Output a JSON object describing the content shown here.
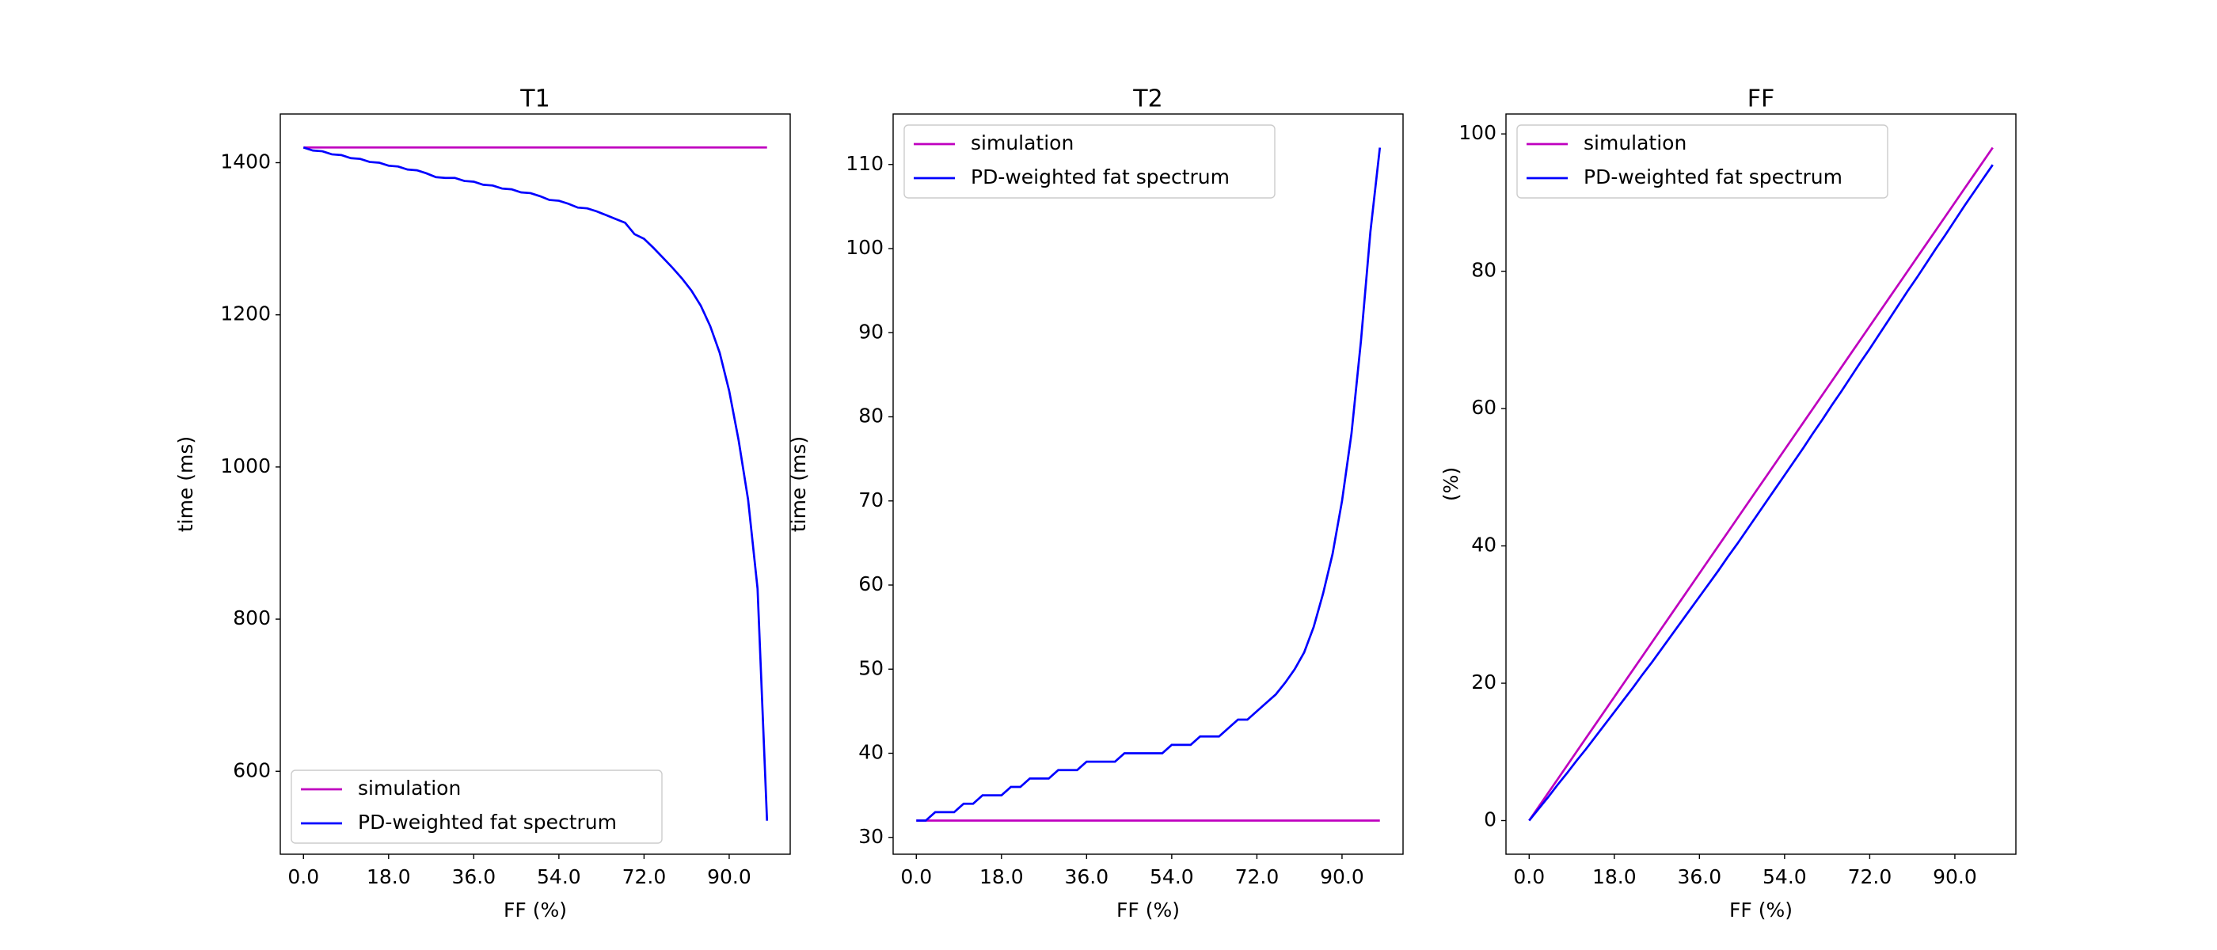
{
  "chart_data": [
    {
      "type": "line",
      "title": "T1",
      "x_label": "FF (%)",
      "y_label": "time (ms)",
      "legend": "lower left",
      "xlim": [
        -4.9,
        102.9
      ],
      "ylim": [
        491,
        1464
      ],
      "xticks": [
        {
          "value": 0,
          "label": "0.0"
        },
        {
          "value": 18,
          "label": "18.0"
        },
        {
          "value": 36,
          "label": "36.0"
        },
        {
          "value": 54,
          "label": "54.0"
        },
        {
          "value": 72,
          "label": "72.0"
        },
        {
          "value": 90,
          "label": "90.0"
        }
      ],
      "yticks": [
        600,
        800,
        1000,
        1200,
        1400
      ],
      "x": [
        0,
        2,
        4,
        6,
        8,
        10,
        12,
        14,
        16,
        18,
        20,
        22,
        24,
        26,
        28,
        30,
        32,
        34,
        36,
        38,
        40,
        42,
        44,
        46,
        48,
        50,
        52,
        54,
        56,
        58,
        60,
        62,
        64,
        66,
        68,
        70,
        72,
        74,
        76,
        78,
        80,
        82,
        84,
        86,
        88,
        90,
        92,
        94,
        96,
        98
      ],
      "series": [
        {
          "name": "simulation",
          "color": "#bf00bf",
          "values": [
            1420,
            1420,
            1420,
            1420,
            1420,
            1420,
            1420,
            1420,
            1420,
            1420,
            1420,
            1420,
            1420,
            1420,
            1420,
            1420,
            1420,
            1420,
            1420,
            1420,
            1420,
            1420,
            1420,
            1420,
            1420,
            1420,
            1420,
            1420,
            1420,
            1420,
            1420,
            1420,
            1420,
            1420,
            1420,
            1420,
            1420,
            1420,
            1420,
            1420,
            1420,
            1420,
            1420,
            1420,
            1420,
            1420,
            1420,
            1420,
            1420,
            1420
          ]
        },
        {
          "name": "PD-weighted fat spectrum",
          "color": "#0000ff",
          "values": [
            1420,
            1416,
            1415,
            1411,
            1410,
            1406,
            1405,
            1401,
            1400,
            1396,
            1395,
            1391,
            1390,
            1386,
            1381,
            1380,
            1380,
            1376,
            1375,
            1371,
            1370,
            1366,
            1365,
            1361,
            1360,
            1356,
            1351,
            1350,
            1346,
            1341,
            1340,
            1336,
            1331,
            1326,
            1321,
            1306,
            1300,
            1288,
            1275,
            1262,
            1248,
            1232,
            1212,
            1185,
            1150,
            1100,
            1035,
            957,
            840,
            535
          ]
        }
      ]
    },
    {
      "type": "line",
      "title": "T2",
      "x_label": "FF (%)",
      "y_label": "time (ms)",
      "legend": "upper left",
      "xlim": [
        -4.9,
        102.9
      ],
      "ylim": [
        28,
        116
      ],
      "xticks": [
        {
          "value": 0,
          "label": "0.0"
        },
        {
          "value": 18,
          "label": "18.0"
        },
        {
          "value": 36,
          "label": "36.0"
        },
        {
          "value": 54,
          "label": "54.0"
        },
        {
          "value": 72,
          "label": "72.0"
        },
        {
          "value": 90,
          "label": "90.0"
        }
      ],
      "yticks": [
        30,
        40,
        50,
        60,
        70,
        80,
        90,
        100,
        110
      ],
      "x": [
        0,
        2,
        4,
        6,
        8,
        10,
        12,
        14,
        16,
        18,
        20,
        22,
        24,
        26,
        28,
        30,
        32,
        34,
        36,
        38,
        40,
        42,
        44,
        46,
        48,
        50,
        52,
        54,
        56,
        58,
        60,
        62,
        64,
        66,
        68,
        70,
        72,
        74,
        76,
        78,
        80,
        82,
        84,
        86,
        88,
        90,
        92,
        94,
        96,
        98
      ],
      "series": [
        {
          "name": "simulation",
          "color": "#bf00bf",
          "values": [
            32,
            32,
            32,
            32,
            32,
            32,
            32,
            32,
            32,
            32,
            32,
            32,
            32,
            32,
            32,
            32,
            32,
            32,
            32,
            32,
            32,
            32,
            32,
            32,
            32,
            32,
            32,
            32,
            32,
            32,
            32,
            32,
            32,
            32,
            32,
            32,
            32,
            32,
            32,
            32,
            32,
            32,
            32,
            32,
            32,
            32,
            32,
            32,
            32,
            32
          ]
        },
        {
          "name": "PD-weighted fat spectrum",
          "color": "#0000ff",
          "values": [
            32,
            32,
            33,
            33,
            33,
            34,
            34,
            35,
            35,
            35,
            36,
            36,
            37,
            37,
            37,
            38,
            38,
            38,
            39,
            39,
            39,
            39,
            40,
            40,
            40,
            40,
            40,
            41,
            41,
            41,
            42,
            42,
            42,
            43,
            44,
            44,
            45,
            46,
            47,
            48.4,
            50,
            52,
            55,
            59,
            63.7,
            70,
            78,
            89,
            102,
            112
          ]
        }
      ]
    },
    {
      "type": "line",
      "title": "FF",
      "x_label": "FF (%)",
      "y_label": "(%)",
      "legend": "upper left",
      "xlim": [
        -4.9,
        102.9
      ],
      "ylim": [
        -4.9,
        102.9
      ],
      "xticks": [
        {
          "value": 0,
          "label": "0.0"
        },
        {
          "value": 18,
          "label": "18.0"
        },
        {
          "value": 36,
          "label": "36.0"
        },
        {
          "value": 54,
          "label": "54.0"
        },
        {
          "value": 72,
          "label": "72.0"
        },
        {
          "value": 90,
          "label": "90.0"
        }
      ],
      "yticks": [
        0,
        20,
        40,
        60,
        80,
        100
      ],
      "x": [
        0,
        2,
        4,
        6,
        8,
        10,
        12,
        14,
        16,
        18,
        20,
        22,
        24,
        26,
        28,
        30,
        32,
        34,
        36,
        38,
        40,
        42,
        44,
        46,
        48,
        50,
        52,
        54,
        56,
        58,
        60,
        62,
        64,
        66,
        68,
        70,
        72,
        74,
        76,
        78,
        80,
        82,
        84,
        86,
        88,
        90,
        92,
        94,
        96,
        98
      ],
      "series": [
        {
          "name": "simulation",
          "color": "#bf00bf",
          "values": [
            0,
            2,
            4,
            6,
            8,
            10,
            12,
            14,
            16,
            18,
            20,
            22,
            24,
            26,
            28,
            30,
            32,
            34,
            36,
            38,
            40,
            42,
            44,
            46,
            48,
            50,
            52,
            54,
            56,
            58,
            60,
            62,
            64,
            66,
            68,
            70,
            72,
            74,
            76,
            78,
            80,
            82,
            84,
            86,
            88,
            90,
            92,
            94,
            96,
            98
          ]
        },
        {
          "name": "PD-weighted fat spectrum",
          "color": "#0000ff",
          "values": [
            0,
            1.7,
            3.4,
            5.2,
            6.9,
            8.7,
            10.4,
            12.2,
            14.0,
            15.8,
            17.6,
            19.4,
            21.3,
            23.1,
            25.0,
            26.9,
            28.8,
            30.7,
            32.6,
            34.5,
            36.4,
            38.4,
            40.3,
            42.3,
            44.3,
            46.3,
            48.3,
            50.3,
            52.3,
            54.3,
            56.4,
            58.4,
            60.5,
            62.5,
            64.6,
            66.7,
            68.7,
            70.8,
            72.9,
            75.0,
            77.1,
            79.1,
            81.2,
            83.3,
            85.3,
            87.4,
            89.5,
            91.5,
            93.5,
            95.5
          ]
        }
      ]
    }
  ]
}
